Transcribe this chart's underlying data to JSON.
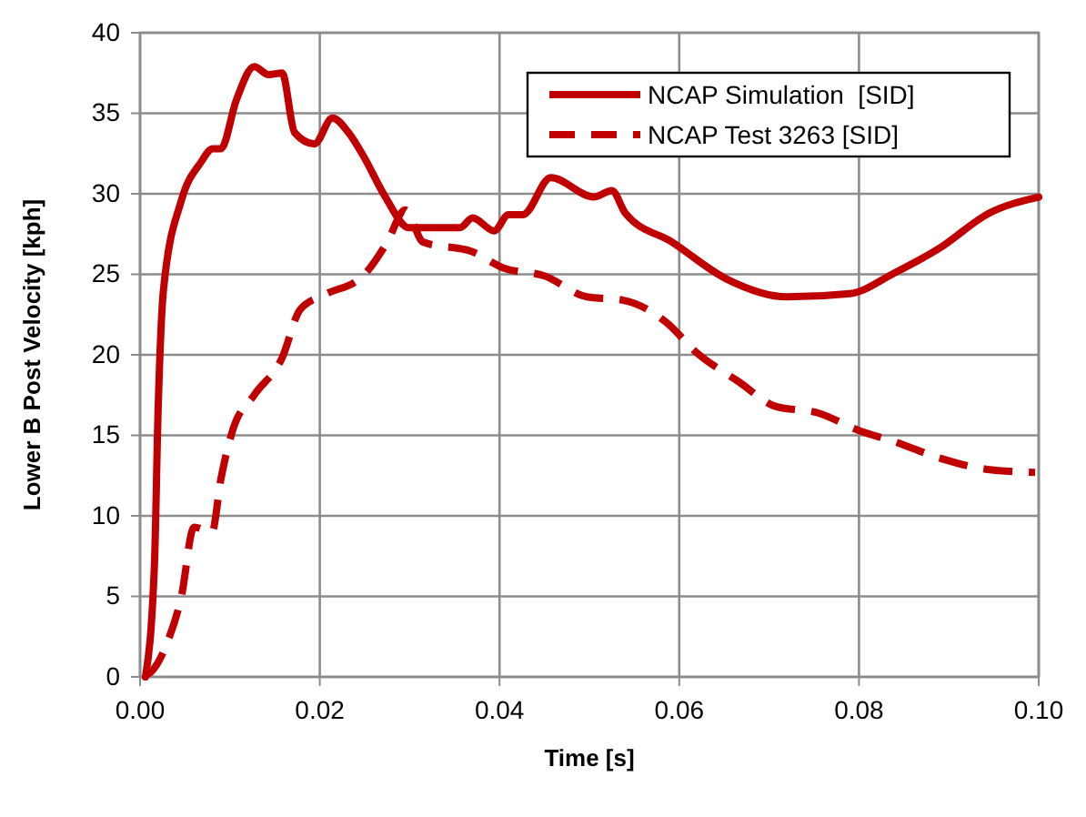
{
  "chart_data": {
    "type": "line",
    "xlabel": "Time [s]",
    "ylabel": "Lower B Post Velocity [kph]",
    "xlim": [
      0,
      0.1
    ],
    "xticks": [
      {
        "value": 0,
        "label": "0.00"
      },
      {
        "value": 0.02,
        "label": "0.02"
      },
      {
        "value": 0.04,
        "label": "0.04"
      },
      {
        "value": 0.06,
        "label": "0.06"
      },
      {
        "value": 0.08,
        "label": "0.08"
      },
      {
        "value": 0.1,
        "label": "0.10"
      }
    ],
    "ylim": [
      0,
      40
    ],
    "yticks": [
      0,
      5,
      10,
      15,
      20,
      25,
      30,
      35,
      40
    ],
    "grid": true,
    "legend": "top right",
    "series": [
      {
        "name": "NCAP Simulation  [SID]",
        "color": "#c00000",
        "line_style": "solid",
        "x": [
          0.0006,
          0.0016,
          0.002,
          0.0026,
          0.0046,
          0.0067,
          0.0081,
          0.009,
          0.0107,
          0.0127,
          0.0143,
          0.0158,
          0.0172,
          0.0194,
          0.0214,
          0.0232,
          0.0248,
          0.0273,
          0.0299,
          0.0356,
          0.037,
          0.0394,
          0.041,
          0.0426,
          0.0457,
          0.0505,
          0.0525,
          0.054,
          0.0592,
          0.0653,
          0.072,
          0.079,
          0.084,
          0.0889,
          0.0945,
          0.1
        ],
        "values": [
          0,
          7,
          16.4,
          24,
          29.6,
          31.9,
          32.8,
          32.8,
          35.8,
          37.9,
          37.4,
          37.5,
          33.8,
          33.1,
          34.7,
          33.8,
          32.4,
          29.8,
          27.9,
          27.9,
          28.5,
          27.7,
          28.7,
          28.7,
          31,
          29.8,
          30.2,
          28.8,
          27,
          24.7,
          23.6,
          23.8,
          25.1,
          26.6,
          28.8,
          29.8
        ]
      },
      {
        "name": "NCAP Test 3263 [SID]",
        "color": "#c00000",
        "line_style": "dashed",
        "x": [
          0.0006,
          0.0012,
          0.003,
          0.0046,
          0.006,
          0.008,
          0.009,
          0.0103,
          0.0127,
          0.0158,
          0.0178,
          0.0204,
          0.0248,
          0.0275,
          0.0295,
          0.0315,
          0.037,
          0.0404,
          0.045,
          0.0497,
          0.0537,
          0.0586,
          0.0618,
          0.0667,
          0.0707,
          0.0754,
          0.08,
          0.084,
          0.0889,
          0.0941,
          0.0996
        ],
        "values": [
          0.1,
          0.3,
          2.1,
          5,
          9.3,
          9,
          12.3,
          15.3,
          17.5,
          19.8,
          22.8,
          23.7,
          24.9,
          27,
          29,
          27,
          26.4,
          25.4,
          24.9,
          23.6,
          23.4,
          22,
          20.2,
          18.3,
          16.8,
          16.4,
          15.3,
          14.6,
          13.6,
          12.9,
          12.7
        ]
      }
    ]
  }
}
